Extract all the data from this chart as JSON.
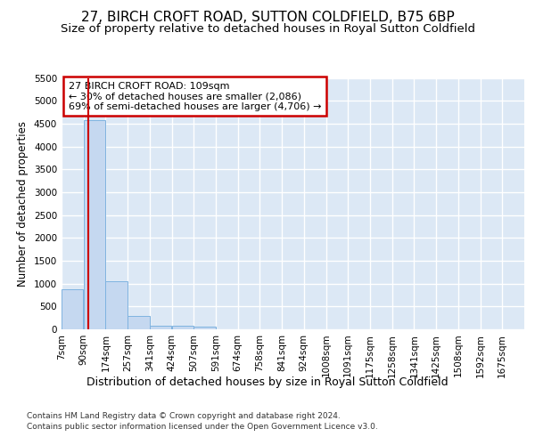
{
  "title": "27, BIRCH CROFT ROAD, SUTTON COLDFIELD, B75 6BP",
  "subtitle": "Size of property relative to detached houses in Royal Sutton Coldfield",
  "xlabel": "Distribution of detached houses by size in Royal Sutton Coldfield",
  "ylabel": "Number of detached properties",
  "footnote1": "Contains HM Land Registry data © Crown copyright and database right 2024.",
  "footnote2": "Contains public sector information licensed under the Open Government Licence v3.0.",
  "bin_labels": [
    "7sqm",
    "90sqm",
    "174sqm",
    "257sqm",
    "341sqm",
    "424sqm",
    "507sqm",
    "591sqm",
    "674sqm",
    "758sqm",
    "841sqm",
    "924sqm",
    "1008sqm",
    "1091sqm",
    "1175sqm",
    "1258sqm",
    "1341sqm",
    "1425sqm",
    "1508sqm",
    "1592sqm",
    "1675sqm"
  ],
  "bar_values": [
    880,
    4580,
    1060,
    285,
    80,
    75,
    55,
    0,
    0,
    0,
    0,
    0,
    0,
    0,
    0,
    0,
    0,
    0,
    0,
    0
  ],
  "bar_color": "#c5d8f0",
  "bar_edge_color": "#7fb3e0",
  "property_sqm": 109,
  "annotation_line1": "27 BIRCH CROFT ROAD: 109sqm",
  "annotation_line2": "← 30% of detached houses are smaller (2,086)",
  "annotation_line3": "69% of semi-detached houses are larger (4,706) →",
  "red_line_color": "#cc0000",
  "annotation_box_edge_color": "#cc0000",
  "annotation_box_face_color": "#ffffff",
  "ylim": [
    0,
    5500
  ],
  "yticks": [
    0,
    500,
    1000,
    1500,
    2000,
    2500,
    3000,
    3500,
    4000,
    4500,
    5000,
    5500
  ],
  "bg_color": "#ffffff",
  "axes_bg_color": "#dce8f5",
  "grid_color": "#ffffff",
  "title_fontsize": 11,
  "subtitle_fontsize": 9.5,
  "tick_fontsize": 7.5,
  "ylabel_fontsize": 8.5,
  "xlabel_fontsize": 9,
  "footnote_fontsize": 6.5,
  "bin_width": 83
}
